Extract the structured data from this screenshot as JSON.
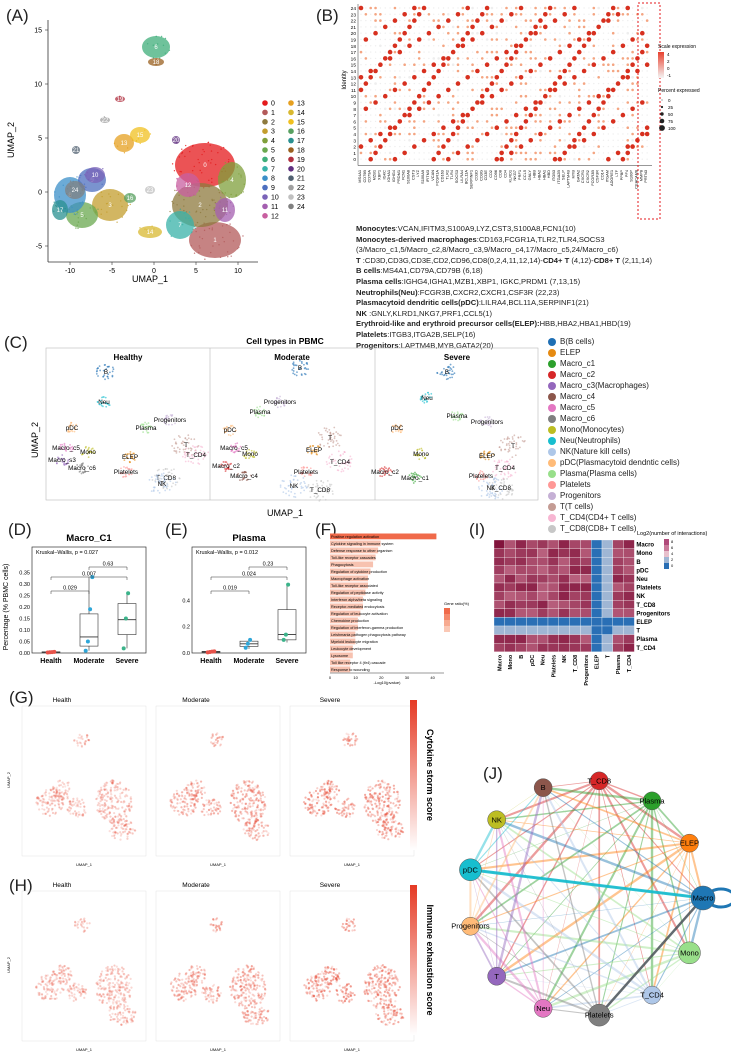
{
  "panels": {
    "A": "(A)",
    "B": "(B)",
    "C": "(C)",
    "D": "(D)",
    "E": "(E)",
    "F": "(F)",
    "G": "(G)",
    "H": "(H)",
    "I": "(I)",
    "J": "(J)"
  },
  "panel_a": {
    "xlabel": "UMAP_1",
    "ylabel": "UMAP_2",
    "xticks": [
      "-10",
      "-5",
      "0",
      "5",
      "10"
    ],
    "yticks": [
      "15",
      "10",
      "5",
      "0",
      "-5"
    ],
    "clusters": [
      "0",
      "1",
      "2",
      "3",
      "4",
      "5",
      "6",
      "7",
      "8",
      "9",
      "10",
      "11",
      "12",
      "13",
      "14",
      "15",
      "16",
      "17",
      "18",
      "19",
      "20",
      "21",
      "22",
      "23",
      "24"
    ],
    "colors": [
      "#e41a1c",
      "#b35a5a",
      "#8e7a3e",
      "#c39d2d",
      "#7f9f3b",
      "#6aa84f",
      "#3fae7a",
      "#38b2a8",
      "#3b8fc8",
      "#4d6fbf",
      "#7a63b8",
      "#a45fb0",
      "#c85fa0",
      "#e6a020",
      "#d8b830",
      "#f0c020",
      "#58a060",
      "#2a9090",
      "#9a6020",
      "#b03040",
      "#603080",
      "#506070",
      "#a0a0a0",
      "#c0c0c0",
      "#808080"
    ]
  },
  "panel_b": {
    "ylabel": "Identity",
    "yticks": [
      "24",
      "23",
      "22",
      "21",
      "20",
      "19",
      "18",
      "17",
      "16",
      "15",
      "14",
      "13",
      "12",
      "11",
      "10",
      "9",
      "8",
      "7",
      "6",
      "5",
      "4",
      "3",
      "2",
      "1",
      "0"
    ],
    "genes": [
      "MS4A1",
      "CD79B",
      "CD79A",
      "MZB1",
      "XBP1",
      "IGKC",
      "IGHA1",
      "IGHG4",
      "PRDM1",
      "FCN1",
      "S100A8",
      "CST3",
      "LYZ",
      "S100A9",
      "IFITM3",
      "VCAN",
      "FCGR1A",
      "CD163",
      "TLR2",
      "TLR4",
      "SOCS3",
      "LILRA4",
      "BCL11A",
      "SERPINF1",
      "CD3D",
      "CD3G",
      "CD3E",
      "CD2",
      "CD96",
      "CD8",
      "CD4",
      "KLRD1",
      "NKG7",
      "PRF1",
      "CCL5",
      "GNLY",
      "HBB",
      "HBA2",
      "HBA1",
      "HBD",
      "ITGB3",
      "ITGA2B",
      "SELP",
      "LAPTM4B",
      "MYB",
      "GATA2",
      "CXCR1",
      "CXCR2",
      "FCGR3B",
      "CSF3R",
      "CD14",
      "ITGAM",
      "ADGRE1",
      "LTF",
      "PPBP",
      "PF4",
      "S100P",
      "CEACAM8",
      "MMP8",
      "PRTN3"
    ],
    "legend_scale_title": "Scale expression",
    "legend_scale_ticks": [
      "4",
      "2",
      "0",
      "-1"
    ],
    "legend_pct_title": "Percent expressed",
    "legend_pct_ticks": [
      "0",
      "25",
      "50",
      "75",
      "100"
    ]
  },
  "markers": [
    {
      "name": "Monocytes",
      "text": ":VCAN,IFITM3,S100A9,LYZ,CST3,S100A8,FCN1(10)"
    },
    {
      "name": "Monocytes-derived macrophages",
      "text": ":CD163,FCGR1A,TLR2,TLR4,SOCS3"
    },
    {
      "name": "",
      "text": "(3/Macro_c1,5/Macro_c2,8/Macro_c3,9/Macro_c4,17/Macro_c5,24/Macro_c6)"
    },
    {
      "name": "T",
      "text": " :CD3D,CD3G,CD3E,CD2,CD96,CD8(0,2,4,11,12,14)-",
      "extra_bold": "CD4+ T",
      "extra_text": " (4,12)-",
      "extra_bold2": "CD8+ T",
      "extra_text2": " (2,11,14)"
    },
    {
      "name": "B cells",
      "text": ":MS4A1,CD79A,CD79B (6,18)"
    },
    {
      "name": "Plasma cells",
      "text": ":IGHG4,IGHA1,MZB1,XBP1, IGKC,PRDM1 (7,13,15)"
    },
    {
      "name": "Neutrophils(Neu)",
      "text": ":FCGR3B,CXCR2,CXCR1,CSF3R (22,23)"
    },
    {
      "name": "Plasmacytoid dendritic cells(pDC)",
      "text": ":LILRA4,BCL11A,SERPINF1(21)"
    },
    {
      "name": "NK",
      "text": " :GNLY,KLRD1,NKG7,PRF1,CCL5(1)"
    },
    {
      "name": "Erythroid-like and erythroid precursor cells(ELEP):",
      "text": "HBB,HBA2,HBA1,HBD(19)"
    },
    {
      "name": "Platelets",
      "text": ":ITGB3,ITGA2B,SELP(16)"
    },
    {
      "name": "Progenitors",
      "text": ":LAPTM4B,MYB,GATA2(20)"
    }
  ],
  "panel_c": {
    "title": "Cell types in PBMC",
    "xlabel": "UMAP_1",
    "ylabel": "UMAP_2",
    "facets": [
      "Healthy",
      "Moderate",
      "Severe"
    ],
    "legend": [
      {
        "label": "B(B cells)",
        "color": "#1f6fb4"
      },
      {
        "label": "ELEP",
        "color": "#e58a12"
      },
      {
        "label": "Macro_c1",
        "color": "#2ca02c"
      },
      {
        "label": "Macro_c2",
        "color": "#d62728"
      },
      {
        "label": "Macro_c3",
        "color": "#9467bd"
      },
      {
        "label": "Macro_c4",
        "color": "#8c564b"
      },
      {
        "label": "Macro_c5",
        "color": "#e377c2"
      },
      {
        "label": "Macro_c6",
        "color": "#7f7f7f"
      },
      {
        "label": "Mono(Monocytes)",
        "color": "#bcbd22"
      },
      {
        "label": "Neu(Neutrophils)",
        "color": "#17becf"
      },
      {
        "label": "NK(Nature kill cells)",
        "color": "#aec7e8"
      },
      {
        "label": "pDC(Plasmacytoid dendntic cells)",
        "color": "#ffbb78"
      },
      {
        "label": "Plasma(Plasma cells)",
        "color": "#98df8a"
      },
      {
        "label": "Platelets",
        "color": "#ff9896"
      },
      {
        "label": "Progenitors",
        "color": "#c5b0d5"
      },
      {
        "label": "T(T cells)",
        "color": "#c49c94"
      },
      {
        "label": "T_CD4(CD4+ T cells)",
        "color": "#f7b6d2"
      },
      {
        "label": "T_CD8(CD8+ T cells)",
        "color": "#c7c7c7"
      }
    ],
    "bracket_label": "(Macrophages)",
    "cell_labels_healthy": [
      "B",
      "Neu",
      "pDC",
      "Plasma",
      "Progenitors",
      "Macro_c5",
      "Mono",
      "Macro_s3",
      "Macro_c6",
      "ELEP",
      "T",
      "T_CD4",
      "Platelets",
      "T_CD8",
      "NK"
    ],
    "cell_labels_moderate": [
      "B",
      "Plasma",
      "Progenitors",
      "pDC",
      "Macro_c5",
      "Mono",
      "T",
      "ELEP",
      "T_CD4",
      "Macro_c2",
      "Macro_c4",
      "Platelets",
      "T_CD8",
      "NK"
    ],
    "cell_labels_severe": [
      "B",
      "Neu",
      "Plasma",
      "pDC",
      "Progenitors",
      "T",
      "ELEP",
      "T_CD4",
      "Mono",
      "Macro_c2",
      "Macro_c1",
      "Platelets",
      "T_CD8",
      "NK"
    ]
  },
  "chart_data": [
    {
      "type": "box",
      "panel": "D",
      "title": "Macro_C1",
      "subtitle": "Kruskal–Wallis, p = 0.027",
      "ylabel": "Percentage (% PBMC cells)",
      "categories": [
        "Health",
        "Moderate",
        "Severe"
      ],
      "yticks": [
        "0.00",
        "0.05",
        "0.10",
        "0.15",
        "0.20",
        "0.25",
        "0.30",
        "0.35"
      ],
      "ylim": [
        0,
        0.4
      ],
      "comparisons": [
        {
          "pair": [
            "Health",
            "Moderate"
          ],
          "p": "0.029"
        },
        {
          "pair": [
            "Health",
            "Severe"
          ],
          "p": "0.007"
        },
        {
          "pair": [
            "Moderate",
            "Severe"
          ],
          "p": "0.63"
        }
      ],
      "points": {
        "Health": [
          0.002,
          0.003,
          0.004,
          0.005
        ],
        "Moderate": [
          0.01,
          0.05,
          0.19,
          0.33
        ],
        "Severe": [
          0.02,
          0.15,
          0.26
        ]
      },
      "boxes": {
        "Health": [
          0.0,
          0.002,
          0.004,
          0.005,
          0.006
        ],
        "Moderate": [
          0.01,
          0.03,
          0.07,
          0.17,
          0.33
        ],
        "Severe": [
          0.02,
          0.08,
          0.145,
          0.215,
          0.26
        ]
      }
    },
    {
      "type": "box",
      "panel": "E",
      "title": "Plasma",
      "subtitle": "Kruskal–Wallis, p = 0.012",
      "ylabel": "",
      "categories": [
        "Health",
        "Moderate",
        "Severe"
      ],
      "yticks": [
        "0.0",
        "0.2",
        "0.4"
      ],
      "ylim": [
        0,
        0.7
      ],
      "comparisons": [
        {
          "pair": [
            "Health",
            "Moderate"
          ],
          "p": "0.019"
        },
        {
          "pair": [
            "Health",
            "Severe"
          ],
          "p": "0.024"
        },
        {
          "pair": [
            "Moderate",
            "Severe"
          ],
          "p": "0.23"
        }
      ],
      "points": {
        "Health": [
          0.005,
          0.008,
          0.01,
          0.012
        ],
        "Moderate": [
          0.04,
          0.07,
          0.1
        ],
        "Severe": [
          0.1,
          0.14,
          0.52
        ]
      },
      "boxes": {
        "Health": [
          0.0,
          0.005,
          0.009,
          0.012,
          0.015
        ],
        "Moderate": [
          0.03,
          0.05,
          0.07,
          0.09,
          0.1
        ],
        "Severe": [
          0.08,
          0.1,
          0.14,
          0.33,
          0.52
        ]
      }
    },
    {
      "type": "bar",
      "panel": "F",
      "xlabel": "-Log10(pvalue)",
      "legend_title": "Gene ratio(%)",
      "categories": [
        "Positive regulation activation",
        "Cytokine signaling in immune system",
        "Defense response to other organism",
        "Toll-like receptor cascades",
        "Phagocytosis",
        "Regulation of cytokine production",
        "Macrophage activation",
        "Toll-like receptor associated",
        "Regulation of peptidase activity",
        "Interferon alpha/beta signaling",
        "Receptor-mediated endocytosis",
        "Regulation of leukocyte activation",
        "Chemokine production",
        "Regulation of interferon-gamma production",
        "Leishmania pathogen phagocytosis pathway",
        "Myeloid leukocyte migration",
        "Leukocyte development",
        "Lysosome",
        "Toll like receptor 4 (tlr4) cascade",
        "Response to wounding"
      ],
      "values": [
        42,
        20,
        19,
        18,
        17,
        16,
        15,
        15,
        14,
        13,
        13,
        12,
        11,
        11,
        10,
        10,
        9,
        9,
        8,
        8
      ],
      "xticks": [
        "0",
        "10",
        "20",
        "30",
        "40"
      ]
    },
    {
      "type": "heatmap",
      "panel": "I",
      "legend_title": "Log2(number of interactions)",
      "legend_ticks": [
        "8",
        "6",
        "4",
        "2",
        "0"
      ],
      "rows": [
        "Macro",
        "Mono",
        "B",
        "pDC",
        "Neu",
        "Platelets",
        "NK",
        "T_CD8",
        "Progenitors",
        "ELEP",
        "T",
        "Plasma",
        "T_CD4"
      ],
      "cols": [
        "Macro",
        "Mono",
        "B",
        "pDC",
        "Neu",
        "Platelets",
        "NK",
        "T_CD8",
        "Progenitors",
        "ELEP",
        "T",
        "Plasma",
        "T_CD4"
      ]
    }
  ],
  "panel_g": {
    "facets": [
      "Health",
      "Moderate",
      "Severe"
    ],
    "colorbar_label": "Cytokine storm score",
    "ylabel": "UMAP_2",
    "xlabel": "UMAP_1"
  },
  "panel_h": {
    "facets": [
      "Health",
      "Moderate",
      "Severe"
    ],
    "colorbar_label": "Immune exhaustion score",
    "ylabel": "UMAP_2",
    "xlabel": "UMAP_1"
  },
  "panel_j": {
    "nodes": [
      {
        "label": "T_CD8",
        "color": "#d62728"
      },
      {
        "label": "Plasma",
        "color": "#2ca02c"
      },
      {
        "label": "ELEP",
        "color": "#ff7f0e"
      },
      {
        "label": "Macro",
        "color": "#1f77b4"
      },
      {
        "label": "Mono",
        "color": "#98df8a"
      },
      {
        "label": "T_CD4",
        "color": "#aec7e8"
      },
      {
        "label": "Platelets",
        "color": "#7f7f7f"
      },
      {
        "label": "Neu",
        "color": "#e377c2"
      },
      {
        "label": "T",
        "color": "#9467bd"
      },
      {
        "label": "Progenitors",
        "color": "#ffbb78"
      },
      {
        "label": "pDC",
        "color": "#17becf"
      },
      {
        "label": "NK",
        "color": "#bcbd22"
      },
      {
        "label": "B",
        "color": "#8c564b"
      }
    ]
  }
}
